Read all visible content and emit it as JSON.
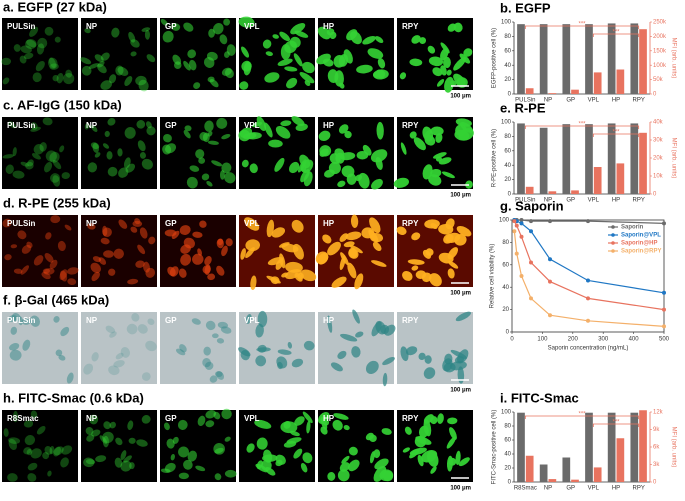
{
  "panels": [
    {
      "title": "a. EGFP (27 kDa)",
      "labels": [
        "PULSin",
        "NP",
        "GP",
        "VPL",
        "HP",
        "RPY"
      ],
      "scale_bar": "100 μm"
    },
    {
      "title": "c. AF-IgG (150 kDa)",
      "labels": [
        "PULSin",
        "NP",
        "GP",
        "VPL",
        "HP",
        "RPY"
      ],
      "scale_bar": "100 μm"
    },
    {
      "title": "d. R-PE (255 kDa)",
      "labels": [
        "PULSin",
        "NP",
        "GP",
        "VPL",
        "HP",
        "RPY"
      ],
      "scale_bar": "100 μm"
    },
    {
      "title": "f. β-Gal (465 kDa)",
      "labels": [
        "PULSin",
        "NP",
        "GP",
        "VPL",
        "HP",
        "RPY"
      ],
      "scale_bar": "100 μm"
    },
    {
      "title": "h. FITC-Smac (0.6 kDa)",
      "labels": [
        "R8Smac",
        "NP",
        "GP",
        "VPL",
        "HP",
        "RPY"
      ],
      "scale_bar": "100 μm"
    }
  ],
  "chart_data": [
    {
      "type": "bar",
      "title": "b. EGFP",
      "categories": [
        "PULSin",
        "NP",
        "GP",
        "VPL",
        "HP",
        "RPY"
      ],
      "ylabel": "EGFP-positive cell (%)",
      "y2label": "MFI (arb. units)",
      "series": [
        {
          "color": "#6b6b6b",
          "values": [
            97,
            97,
            97,
            97,
            98,
            98
          ]
        },
        {
          "color": "#e8735f",
          "axis": "y2",
          "values": [
            20000,
            3000,
            15000,
            75000,
            85000,
            225000
          ]
        }
      ],
      "ylim": [
        0,
        100
      ],
      "yticks": [
        0,
        20,
        40,
        60,
        80,
        100
      ],
      "y2lim": [
        0,
        250000
      ],
      "y2ticks": [
        0,
        {
          "value": 50000,
          "label": "50k"
        },
        {
          "value": 100000,
          "label": "100k"
        },
        {
          "value": 150000,
          "label": "150k"
        },
        {
          "value": 200000,
          "label": "200k"
        },
        {
          "value": 250000,
          "label": "250k"
        }
      ],
      "significance": [
        "***",
        "***"
      ]
    },
    {
      "type": "bar",
      "title": "e. R-PE",
      "categories": [
        "PULSin",
        "NP",
        "GP",
        "VPL",
        "HP",
        "RPY"
      ],
      "ylabel": "R-PE-positive cell (%)",
      "y2label": "MFI (arb. units)",
      "series": [
        {
          "color": "#6b6b6b",
          "values": [
            98,
            92,
            97,
            97,
            98,
            98
          ]
        },
        {
          "color": "#e8735f",
          "axis": "y2",
          "values": [
            4000,
            1500,
            2000,
            15000,
            17000,
            34000
          ]
        }
      ],
      "ylim": [
        0,
        100
      ],
      "yticks": [
        0,
        20,
        40,
        60,
        80,
        100
      ],
      "y2lim": [
        0,
        40000
      ],
      "y2ticks": [
        0,
        {
          "value": 10000,
          "label": "10k"
        },
        {
          "value": 20000,
          "label": "20k"
        },
        {
          "value": 30000,
          "label": "30k"
        },
        {
          "value": 40000,
          "label": "40k"
        }
      ],
      "significance": [
        "***",
        "***"
      ]
    },
    {
      "type": "line",
      "title": "g. Saporin",
      "xlabel": "Saporin concentration (ng/mL)",
      "ylabel": "Relative cell viability (%)",
      "x": [
        7.8,
        15.6,
        31.25,
        62.5,
        125,
        250,
        500
      ],
      "series": [
        {
          "name": "Saporin",
          "color": "#6b6b6b",
          "values": [
            100,
            100,
            100,
            99,
            99,
            99,
            97
          ]
        },
        {
          "name": "Saporin@VPL",
          "color": "#1f77c4",
          "values": [
            100,
            99,
            97,
            90,
            65,
            46,
            35
          ]
        },
        {
          "name": "Saporin@HP",
          "color": "#e8735f",
          "values": [
            99,
            95,
            85,
            62,
            45,
            30,
            20
          ]
        },
        {
          "name": "Saporin@RPY",
          "color": "#f4b06a",
          "values": [
            90,
            70,
            50,
            30,
            15,
            10,
            5
          ]
        }
      ],
      "xlim": [
        0,
        500
      ],
      "xticks": [
        0,
        100,
        200,
        300,
        400,
        500
      ],
      "ylim": [
        0,
        100
      ],
      "yticks": [
        0,
        20,
        40,
        60,
        80,
        100
      ]
    },
    {
      "type": "bar",
      "title": "i. FITC-Smac",
      "categories": [
        "R8Smac",
        "NP",
        "GP",
        "VPL",
        "HP",
        "RPY"
      ],
      "ylabel": "FITC-Smac-positive cell (%)",
      "y2label": "MFI (arb. units)",
      "series": [
        {
          "color": "#6b6b6b",
          "values": [
            99,
            25,
            35,
            99,
            99,
            99
          ]
        },
        {
          "color": "#e8735f",
          "axis": "y2",
          "values": [
            4500,
            500,
            400,
            2500,
            7500,
            12300
          ]
        }
      ],
      "ylim": [
        0,
        100
      ],
      "yticks": [
        0,
        20,
        40,
        60,
        80,
        100
      ],
      "y2lim": [
        0,
        12000
      ],
      "y2ticks": [
        0,
        {
          "value": 3000,
          "label": "3k"
        },
        {
          "value": 6000,
          "label": "6k"
        },
        {
          "value": 9000,
          "label": "9k"
        },
        {
          "value": 12000,
          "label": "12k"
        }
      ],
      "significance": [
        "***",
        "***"
      ]
    }
  ]
}
